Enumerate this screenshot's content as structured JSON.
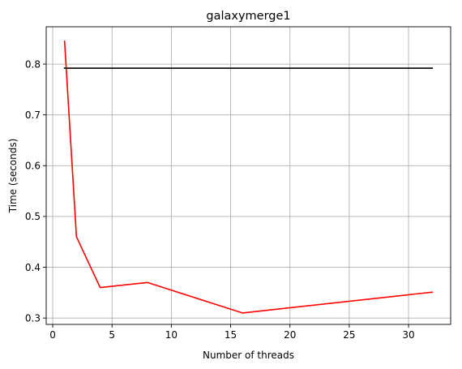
{
  "chart_data": {
    "type": "line",
    "title": "galaxymerge1",
    "xlabel": "Number of threads",
    "ylabel": "Time (seconds)",
    "xlim": [
      -0.55,
      33.55
    ],
    "ylim": [
      0.2875,
      0.8735
    ],
    "xticks": [
      0,
      5,
      10,
      15,
      20,
      25,
      30
    ],
    "yticks": [
      0.3,
      0.4,
      0.5,
      0.6,
      0.7,
      0.8
    ],
    "ytick_labels": [
      "0.3",
      "0.4",
      "0.5",
      "0.6",
      "0.7",
      "0.8"
    ],
    "grid": true,
    "series": [
      {
        "color": "#ff0000",
        "x": [
          1,
          2,
          4,
          8,
          16,
          32
        ],
        "values": [
          0.845,
          0.46,
          0.36,
          0.37,
          0.31,
          0.351
        ]
      },
      {
        "color": "#000000",
        "x": [
          1,
          32
        ],
        "values": [
          0.792,
          0.792
        ]
      }
    ]
  }
}
